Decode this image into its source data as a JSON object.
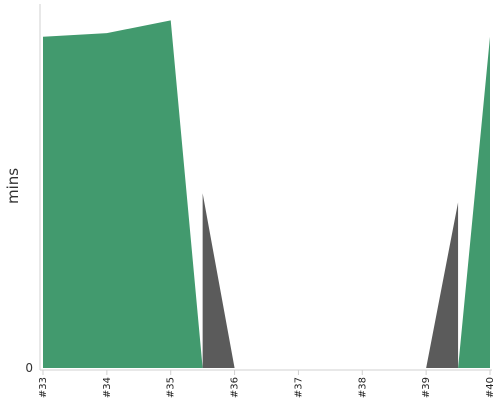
{
  "chart_data": {
    "type": "area",
    "title": "",
    "xlabel": "",
    "ylabel": "mins",
    "y_tick_labels": [
      "0"
    ],
    "ylim": [
      0,
      100
    ],
    "categories": [
      "#33",
      "#34",
      "#35",
      "#36",
      "#37",
      "#38",
      "#39",
      "#40"
    ],
    "grid": false,
    "legend": "none",
    "series": [
      {
        "color": "#429a6e",
        "points": [
          {
            "x": "#33",
            "y": 91
          },
          {
            "x": "#34",
            "y": 92
          },
          {
            "x": "#35",
            "y": 95.5
          },
          {
            "x": "#35.5",
            "y": 0
          },
          {
            "x": "#39.5",
            "y": 0
          },
          {
            "x": "#40",
            "y": 91
          }
        ]
      },
      {
        "color": "#5b5b5b",
        "points": [
          {
            "x": "#35.5",
            "y": 48
          },
          {
            "x": "#36",
            "y": 0
          },
          {
            "x": "#39",
            "y": 0
          },
          {
            "x": "#39.5",
            "y": 45.5
          }
        ]
      }
    ]
  }
}
